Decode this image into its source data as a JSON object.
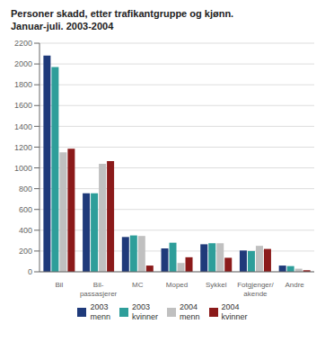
{
  "chart_data": {
    "type": "bar",
    "title": "Personer skadd, etter trafikantgruppe og kjønn.\nJanuar-juli. 2003-2004",
    "categories": [
      "Bil",
      "Bil-\npassasjerer",
      "MC",
      "Moped",
      "Sykkel",
      "Fotgjenger/\nakende",
      "Andre"
    ],
    "series": [
      {
        "name": "2003\nmenn",
        "color": "#1f3a7a",
        "values": [
          2080,
          755,
          335,
          225,
          265,
          205,
          60
        ]
      },
      {
        "name": "2003\nkvinner",
        "color": "#2e9e9a",
        "values": [
          1970,
          755,
          350,
          280,
          275,
          200,
          55
        ]
      },
      {
        "name": "2004\nmenn",
        "color": "#c0c0c0",
        "values": [
          1150,
          1040,
          345,
          85,
          275,
          250,
          30
        ]
      },
      {
        "name": "2004\nkvinner",
        "color": "#8b1a1a",
        "values": [
          1185,
          1065,
          60,
          140,
          135,
          220,
          15
        ]
      }
    ],
    "ylim": [
      0,
      2200
    ],
    "yticks": [
      0,
      200,
      400,
      600,
      800,
      1000,
      1200,
      1400,
      1600,
      1800,
      2000,
      2200
    ],
    "grid": true,
    "legend": "bottom"
  }
}
